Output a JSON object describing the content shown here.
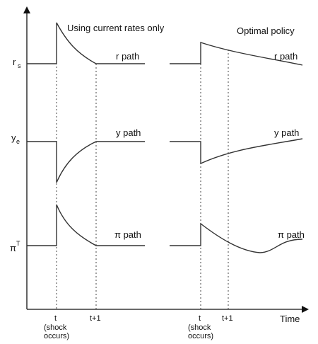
{
  "panels": {
    "left_title": "Using current rates only",
    "right_title": "Optimal policy"
  },
  "y_axis": {
    "rs_main": "r",
    "rs_sub": "s",
    "ye_main": "y",
    "ye_sub": "e",
    "pi_main": "π",
    "pi_sup": "T"
  },
  "x_axis": {
    "label": "Time",
    "t": "t",
    "t1": "t+1",
    "shock_line1": "(shock",
    "shock_line2": "occurs)"
  },
  "path_labels": {
    "r": "r path",
    "y": "y path",
    "pi": "π path"
  }
}
